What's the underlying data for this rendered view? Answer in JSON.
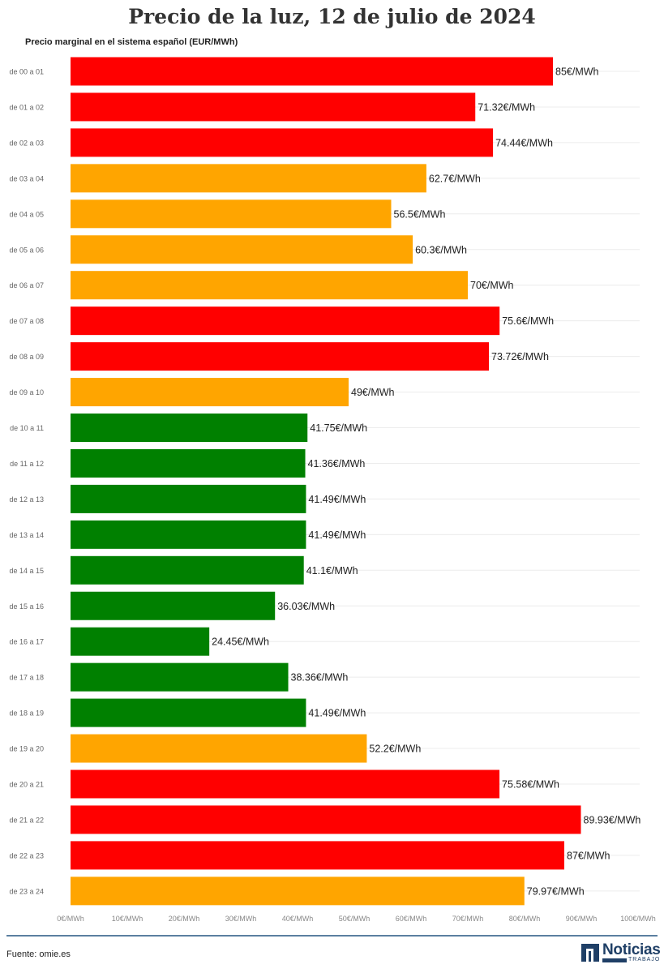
{
  "chart_data": {
    "type": "bar",
    "orientation": "horizontal",
    "title": "Precio de la luz, 12 de julio de 2024",
    "subtitle": "Precio marginal en el sistema español (EUR/MWh)",
    "categories": [
      "de 00 a 01",
      "de 01 a 02",
      "de 02 a 03",
      "de 03 a 04",
      "de 04 a 05",
      "de 05 a 06",
      "de 06 a 07",
      "de 07 a 08",
      "de 08 a 09",
      "de 09 a 10",
      "de 10 a 11",
      "de 11 a 12",
      "de 12 a 13",
      "de 13 a 14",
      "de 14 a 15",
      "de 15 a 16",
      "de 16 a 17",
      "de 17 a 18",
      "de 18 a 19",
      "de 19 a 20",
      "de 20 a 21",
      "de 21 a 22",
      "de 22 a 23",
      "de 23 a 24"
    ],
    "values": [
      85,
      71.32,
      74.44,
      62.7,
      56.5,
      60.3,
      70,
      75.6,
      73.72,
      49,
      41.75,
      41.36,
      41.49,
      41.49,
      41.1,
      36.03,
      24.45,
      38.36,
      41.49,
      52.2,
      75.58,
      89.93,
      87,
      79.97
    ],
    "value_labels": [
      "85€/MWh",
      "71.32€/MWh",
      "74.44€/MWh",
      "62.7€/MWh",
      "56.5€/MWh",
      "60.3€/MWh",
      "70€/MWh",
      "75.6€/MWh",
      "73.72€/MWh",
      "49€/MWh",
      "41.75€/MWh",
      "41.36€/MWh",
      "41.49€/MWh",
      "41.49€/MWh",
      "41.1€/MWh",
      "36.03€/MWh",
      "24.45€/MWh",
      "38.36€/MWh",
      "41.49€/MWh",
      "52.2€/MWh",
      "75.58€/MWh",
      "89.93€/MWh",
      "87€/MWh",
      "79.97€/MWh"
    ],
    "bar_colors": [
      "#ff0000",
      "#ff0000",
      "#ff0000",
      "#ffa500",
      "#ffa500",
      "#ffa500",
      "#ffa500",
      "#ff0000",
      "#ff0000",
      "#ffa500",
      "#008000",
      "#008000",
      "#008000",
      "#008000",
      "#008000",
      "#008000",
      "#008000",
      "#008000",
      "#008000",
      "#ffa500",
      "#ff0000",
      "#ff0000",
      "#ff0000",
      "#ffa500"
    ],
    "xlim": [
      0,
      100
    ],
    "x_ticks": [
      0,
      10,
      20,
      30,
      40,
      50,
      60,
      70,
      80,
      90,
      100
    ],
    "x_tick_labels": [
      "0€/MWh",
      "10€/MWh",
      "20€/MWh",
      "30€/MWh",
      "40€/MWh",
      "50€/MWh",
      "60€/MWh",
      "70€/MWh",
      "80€/MWh",
      "90€/MWh",
      "100€/MWh"
    ],
    "grid": true,
    "legend": "none"
  },
  "footer": {
    "source": "Fuente: omie.es",
    "logo_name": "Noticias",
    "logo_tag": "TRABAJO"
  }
}
